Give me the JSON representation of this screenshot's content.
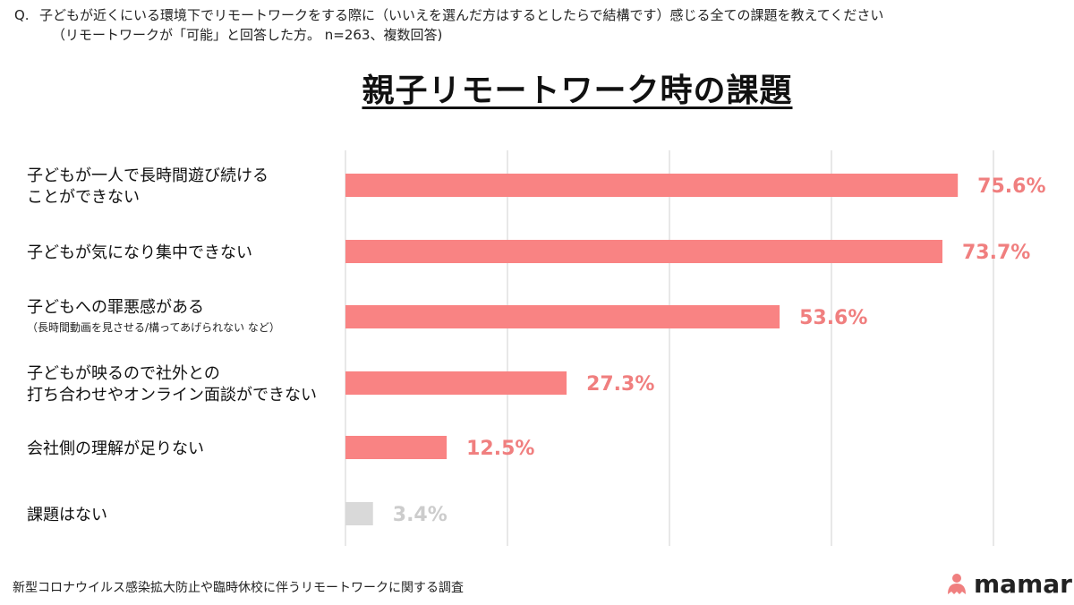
{
  "question": {
    "prefix": "Q.",
    "line1": "子どもが近くにいる環境下でリモートワークをする際に（いいえを選んだ方はするとしたらで結構です）感じる全ての課題を教えてください",
    "line2": "（リモートワークが「可能」と回答した方。 n=263、複数回答)"
  },
  "footer": "新型コロナウイルス感染拡大防止や臨時休校に伴うリモートワークに関する調査",
  "logo": {
    "text": "mamari",
    "icon": "mamari-logo-icon",
    "color": "#f07f7f"
  },
  "colors": {
    "bar": "#f98383",
    "bar_none": "#d9d9d9",
    "label": "#f07f7f",
    "label_none": "#cccccc",
    "grid": "#d0d0d0"
  },
  "chart_data": {
    "type": "bar",
    "orientation": "horizontal",
    "title": "親子リモートワーク時の課題",
    "categories": [
      "子どもが一人で長時間遊び続けることができない",
      "子どもが気になり集中できない",
      "子どもへの罪悪感がある（長時間動画を見させる/構ってあげられない など）",
      "子どもが映るので社外との打ち合わせやオンライン面談ができない",
      "会社側の理解が足りない",
      "課題はない"
    ],
    "category_lines": [
      [
        "子どもが一人で長時間遊び続ける",
        "ことができない"
      ],
      [
        "子どもが気になり集中できない"
      ],
      [
        "子どもへの罪悪感がある"
      ],
      [
        "子どもが映るので社外との",
        "打ち合わせやオンライン面談ができない"
      ],
      [
        "会社側の理解が足りない"
      ],
      [
        "課題はない"
      ]
    ],
    "category_notes": [
      "",
      "",
      "（長時間動画を見させる/構ってあげられない など）",
      "",
      "",
      ""
    ],
    "values": [
      75.6,
      73.7,
      53.6,
      27.3,
      12.5,
      3.4
    ],
    "value_labels": [
      "75.6%",
      "73.7%",
      "53.6%",
      "27.3%",
      "12.5%",
      "3.4%"
    ],
    "xlim": [
      0,
      80
    ],
    "gridline_values": [
      0,
      20,
      40,
      60,
      80
    ],
    "grid": true,
    "legend": "none"
  }
}
